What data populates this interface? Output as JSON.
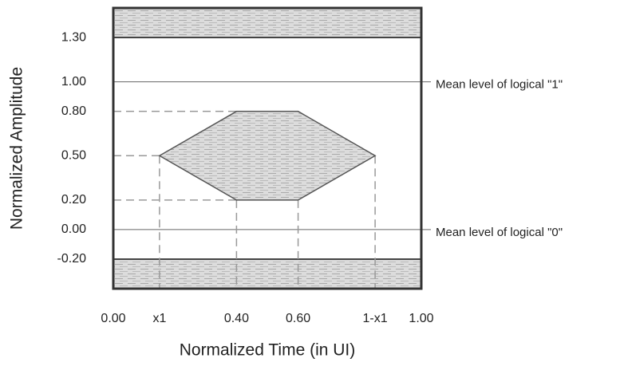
{
  "chart_data": {
    "type": "eye_mask",
    "xlabel": "Normalized Time (in UI)",
    "ylabel": "Normalized Amplitude",
    "xlim": [
      0,
      1
    ],
    "ylim": [
      -0.4,
      1.5
    ],
    "xticks": [
      {
        "value": 0,
        "label": "0.00"
      },
      {
        "value": 0.15,
        "label": "x1"
      },
      {
        "value": 0.4,
        "label": "0.40"
      },
      {
        "value": 0.6,
        "label": "0.60"
      },
      {
        "value": 0.85,
        "label": "1-x1"
      },
      {
        "value": 1,
        "label": "1.00"
      }
    ],
    "yticks": [
      {
        "value": 1.3,
        "label": "1.30"
      },
      {
        "value": 1,
        "label": "1.00"
      },
      {
        "value": 0.8,
        "label": "0.80"
      },
      {
        "value": 0.5,
        "label": "0.50"
      },
      {
        "value": 0.2,
        "label": "0.20"
      },
      {
        "value": 0,
        "label": "0.00"
      },
      {
        "value": -0.2,
        "label": "-0.20"
      }
    ],
    "upper_limit": 1.3,
    "lower_limit": -0.2,
    "mask": {
      "x": [
        0.15,
        0.4,
        0.6,
        0.85,
        0.6,
        0.4
      ],
      "y": [
        0.5,
        0.8,
        0.8,
        0.5,
        0.2,
        0.2
      ]
    },
    "reference_lines": [
      {
        "value": 1,
        "label": "Mean level of logical \"1\""
      },
      {
        "value": 0,
        "label": "Mean level of logical \"0\""
      }
    ]
  }
}
